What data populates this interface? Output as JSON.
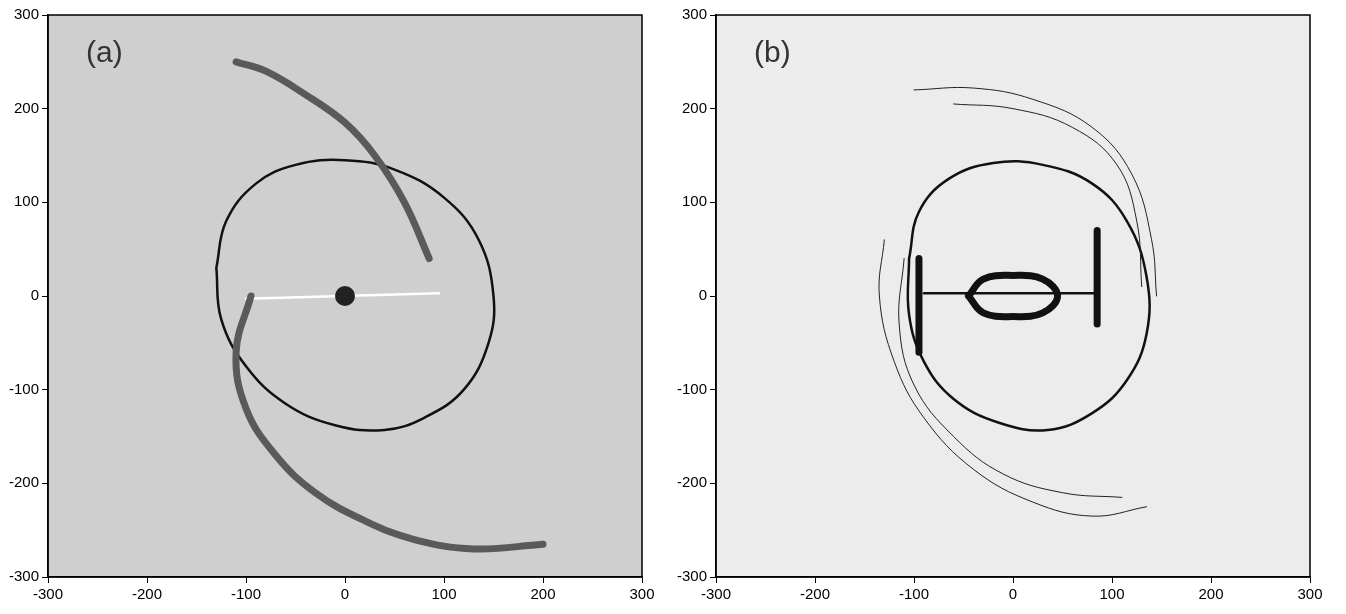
{
  "chart_data": [
    {
      "type": "scatter",
      "title": "(a)",
      "grid": false,
      "tick_labels": true,
      "xlim": [
        -300,
        300
      ],
      "ylim": [
        -300,
        300
      ],
      "xticks": [
        -300,
        -200,
        -100,
        0,
        100,
        200,
        300
      ],
      "yticks": [
        -300,
        -200,
        -100,
        0,
        100,
        200,
        300
      ],
      "series": [
        {
          "type": "line",
          "color": "#5a5a5a",
          "marker": "none",
          "line_style": "bold",
          "x": [
            85,
            60,
            30,
            0,
            -40,
            -80,
            -110
          ],
          "values": [
            40,
            100,
            150,
            185,
            215,
            240,
            250
          ]
        },
        {
          "type": "line",
          "color": "#5a5a5a",
          "marker": "none",
          "line_style": "bold",
          "x": [
            -95,
            -110,
            -100,
            -70,
            -30,
            20,
            70,
            130,
            200
          ],
          "values": [
            0,
            -60,
            -120,
            -170,
            -210,
            -240,
            -260,
            -270,
            -265
          ]
        },
        {
          "type": "scatter",
          "color": "#222222",
          "marker": "circle",
          "x": [
            0
          ],
          "values": [
            0
          ]
        },
        {
          "type": "line",
          "color": "#111111",
          "marker": "none",
          "line_style": "solid",
          "x": [
            -130,
            -120,
            -90,
            -50,
            0,
            50,
            100,
            135,
            150,
            145,
            120,
            80,
            40,
            -10,
            -60,
            -100,
            -125,
            -130
          ],
          "values": [
            30,
            80,
            120,
            140,
            145,
            135,
            105,
            60,
            0,
            -50,
            -100,
            -130,
            -143,
            -138,
            -115,
            -75,
            -25,
            30
          ]
        },
        {
          "type": "line",
          "color": "#ffffff",
          "marker": "none",
          "line_style": "solid",
          "x": [
            -100,
            95
          ],
          "values": [
            -3,
            3
          ]
        }
      ]
    },
    {
      "type": "scatter",
      "title": "(b)",
      "grid": false,
      "tick_labels": true,
      "xlim": [
        -300,
        300
      ],
      "ylim": [
        -300,
        300
      ],
      "xticks": [
        -300,
        -200,
        -100,
        0,
        100,
        200,
        300
      ],
      "yticks": [
        -300,
        -200,
        -100,
        0,
        100,
        200,
        300
      ],
      "series": [
        {
          "type": "line",
          "color": "#222222",
          "marker": "none",
          "line_style": "thin",
          "x": [
            -100,
            -40,
            20,
            80,
            120,
            140,
            145
          ],
          "values": [
            220,
            222,
            210,
            180,
            130,
            60,
            0
          ]
        },
        {
          "type": "line",
          "color": "#222222",
          "marker": "none",
          "line_style": "thin",
          "x": [
            -60,
            0,
            60,
            105,
            125,
            130
          ],
          "values": [
            205,
            200,
            180,
            140,
            80,
            10
          ]
        },
        {
          "type": "line",
          "color": "#222222",
          "marker": "none",
          "line_style": "thin",
          "x": [
            135,
            80,
            20,
            -40,
            -90,
            -120,
            -135,
            -130
          ],
          "values": [
            -225,
            -235,
            -220,
            -185,
            -130,
            -70,
            0,
            60
          ]
        },
        {
          "type": "line",
          "color": "#222222",
          "marker": "none",
          "line_style": "thin",
          "x": [
            110,
            50,
            -10,
            -60,
            -100,
            -115,
            -110
          ],
          "values": [
            -215,
            -210,
            -190,
            -150,
            -95,
            -30,
            40
          ]
        },
        {
          "type": "line",
          "color": "#111111",
          "marker": "none",
          "line_style": "bold",
          "x": [
            -45,
            -30,
            0,
            30,
            45,
            30,
            0,
            -30,
            -45
          ],
          "values": [
            0,
            18,
            22,
            18,
            0,
            -18,
            -22,
            -18,
            0
          ]
        },
        {
          "type": "line",
          "color": "#111111",
          "marker": "none",
          "line_style": "bold",
          "x": [
            -95,
            -95
          ],
          "values": [
            -60,
            40
          ]
        },
        {
          "type": "line",
          "color": "#111111",
          "marker": "none",
          "line_style": "bold",
          "x": [
            85,
            85
          ],
          "values": [
            -30,
            70
          ]
        },
        {
          "type": "line",
          "color": "#111111",
          "marker": "none",
          "line_style": "solid",
          "x": [
            -105,
            -95,
            -65,
            -20,
            30,
            80,
            115,
            135,
            135,
            115,
            80,
            35,
            -15,
            -60,
            -90,
            -105,
            -105
          ],
          "values": [
            40,
            90,
            125,
            142,
            140,
            120,
            80,
            20,
            -40,
            -90,
            -125,
            -143,
            -135,
            -110,
            -70,
            -20,
            40
          ]
        },
        {
          "type": "line",
          "color": "#111111",
          "marker": "none",
          "line_style": "solid",
          "x": [
            -90,
            85
          ],
          "values": [
            3,
            3
          ]
        }
      ]
    }
  ]
}
